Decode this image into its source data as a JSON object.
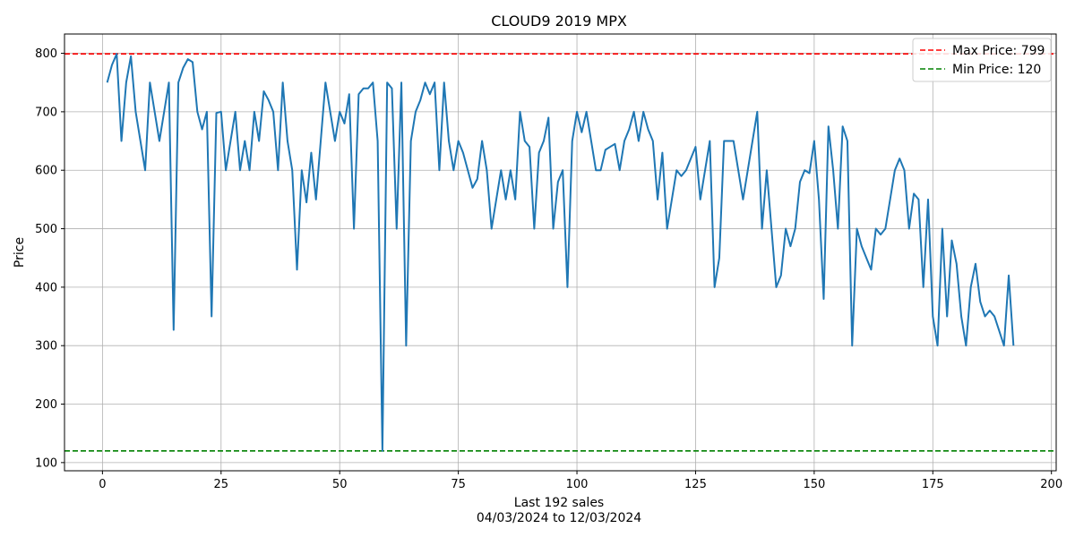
{
  "chart_data": {
    "type": "line",
    "title": "CLOUD9 2019 MPX",
    "xlabel": "Last 192 sales",
    "xlabel_sub": "04/03/2024 to 12/03/2024",
    "ylabel": "Price",
    "xlim": [
      -8,
      201
    ],
    "ylim": [
      86,
      833
    ],
    "xticks": [
      0,
      25,
      50,
      75,
      100,
      125,
      150,
      175,
      200
    ],
    "yticks": [
      100,
      200,
      300,
      400,
      500,
      600,
      700,
      800
    ],
    "grid": true,
    "legend_position": "top-right",
    "series": [
      {
        "color": "#1f77b4",
        "x": [
          1,
          2,
          3,
          4,
          5,
          6,
          7,
          8,
          9,
          10,
          11,
          12,
          13,
          14,
          15,
          16,
          17,
          18,
          19,
          20,
          21,
          22,
          23,
          24,
          25,
          26,
          27,
          28,
          29,
          30,
          31,
          32,
          33,
          34,
          35,
          36,
          37,
          38,
          39,
          40,
          41,
          42,
          43,
          44,
          45,
          46,
          47,
          48,
          49,
          50,
          51,
          52,
          53,
          54,
          55,
          56,
          57,
          58,
          59,
          60,
          61,
          62,
          63,
          64,
          65,
          66,
          67,
          68,
          69,
          70,
          71,
          72,
          73,
          74,
          75,
          76,
          77,
          78,
          79,
          80,
          81,
          82,
          83,
          84,
          85,
          86,
          87,
          88,
          89,
          90,
          91,
          92,
          93,
          94,
          95,
          96,
          97,
          98,
          99,
          100,
          101,
          102,
          103,
          104,
          105,
          106,
          107,
          108,
          109,
          110,
          111,
          112,
          113,
          114,
          115,
          116,
          117,
          118,
          119,
          120,
          121,
          122,
          123,
          124,
          125,
          126,
          127,
          128,
          129,
          130,
          131,
          132,
          133,
          134,
          135,
          136,
          137,
          138,
          139,
          140,
          141,
          142,
          143,
          144,
          145,
          146,
          147,
          148,
          149,
          150,
          151,
          152,
          153,
          154,
          155,
          156,
          157,
          158,
          159,
          160,
          161,
          162,
          163,
          164,
          165,
          166,
          167,
          168,
          169,
          170,
          171,
          172,
          173,
          174,
          175,
          176,
          177,
          178,
          179,
          180,
          181,
          182,
          183,
          184,
          185,
          186,
          187,
          188,
          189,
          190,
          191,
          192
        ],
        "values": [
          750,
          780,
          799,
          650,
          750,
          795,
          700,
          650,
          600,
          750,
          700,
          650,
          700,
          750,
          327,
          750,
          775,
          790,
          785,
          700,
          670,
          700,
          350,
          698,
          700,
          600,
          650,
          700,
          600,
          650,
          600,
          700,
          650,
          735,
          720,
          700,
          600,
          750,
          650,
          600,
          430,
          600,
          545,
          630,
          550,
          650,
          750,
          700,
          650,
          700,
          680,
          730,
          500,
          730,
          740,
          740,
          750,
          650,
          120,
          750,
          740,
          500,
          750,
          300,
          650,
          700,
          720,
          750,
          730,
          750,
          600,
          750,
          650,
          600,
          650,
          630,
          600,
          570,
          585,
          650,
          600,
          500,
          550,
          600,
          550,
          600,
          550,
          700,
          650,
          640,
          500,
          630,
          650,
          690,
          500,
          580,
          600,
          400,
          650,
          700,
          665,
          700,
          650,
          600,
          600,
          635,
          640,
          645,
          600,
          650,
          670,
          700,
          650,
          700,
          670,
          650,
          550,
          630,
          500,
          550,
          600,
          590,
          600,
          620,
          640,
          550,
          600,
          650,
          400,
          450,
          650,
          650,
          650,
          600,
          550,
          600,
          650,
          700,
          500,
          600,
          500,
          400,
          420,
          500,
          470,
          500,
          580,
          600,
          595,
          650,
          550,
          380,
          675,
          600,
          500,
          675,
          650,
          300,
          500,
          470,
          450,
          430,
          500,
          490,
          500,
          550,
          600,
          620,
          600,
          500,
          560,
          550,
          400,
          550,
          350,
          300,
          500,
          350,
          480,
          440,
          350,
          300,
          400,
          440,
          375,
          350,
          360,
          350,
          325,
          300,
          420,
          300
        ]
      }
    ],
    "reference_lines": [
      {
        "label": "Max Price: 799",
        "value": 799,
        "color": "#ff0000"
      },
      {
        "label": "Min Price: 120",
        "value": 120,
        "color": "#008000"
      }
    ]
  }
}
